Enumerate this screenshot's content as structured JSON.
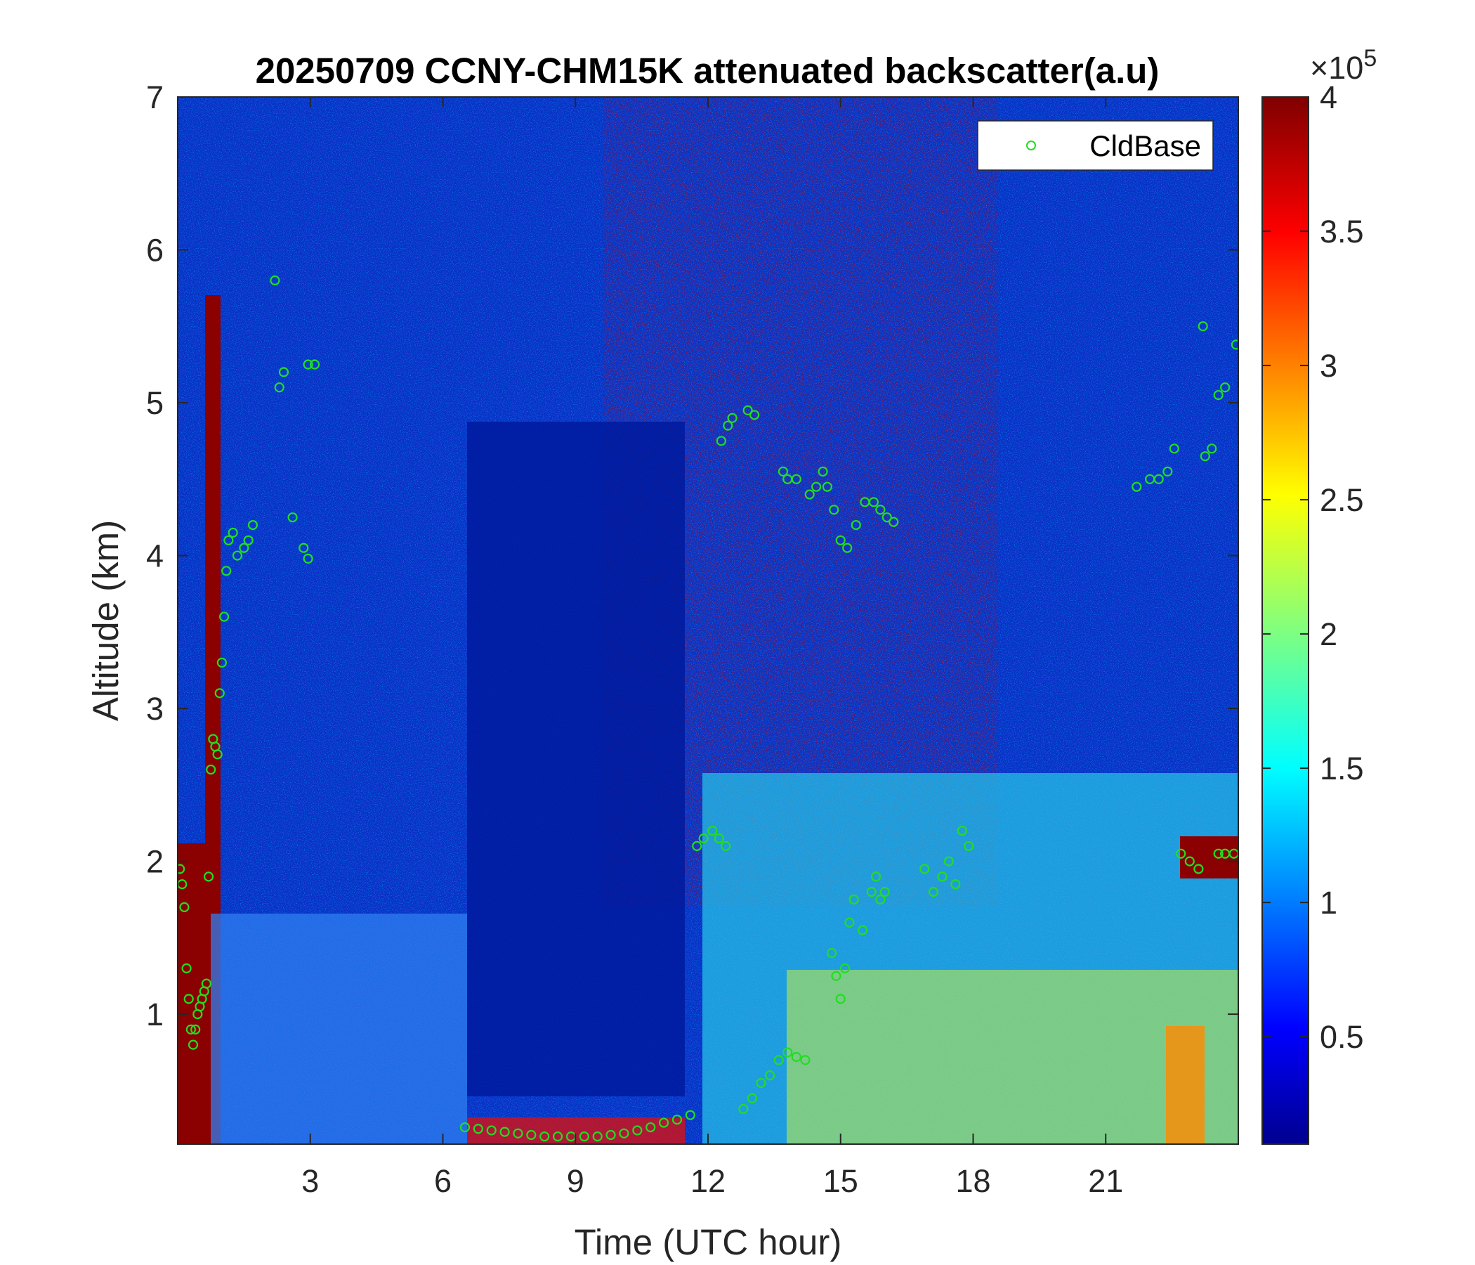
{
  "chart_data": {
    "type": "heatmap",
    "title": "20250709 CCNY-CHM15K attenuated backscatter(a.u)",
    "xlabel": "Time (UTC hour)",
    "ylabel": "Altitude (km)",
    "xlim": [
      0,
      24
    ],
    "ylim": [
      0.15,
      7
    ],
    "xticks": [
      3,
      6,
      9,
      12,
      15,
      18,
      21
    ],
    "yticks": [
      1,
      2,
      3,
      4,
      5,
      6,
      7
    ],
    "colorbar": {
      "colormap": "jet",
      "range": [
        0.1,
        4
      ],
      "ticks": [
        0.5,
        1,
        1.5,
        2,
        2.5,
        3,
        3.5,
        4
      ],
      "exponent_label": "×10",
      "exponent": "5"
    },
    "legend": {
      "placement": "top-right",
      "entries": [
        "CldBase"
      ]
    },
    "series": [
      {
        "name": "CldBase",
        "marker": "circle",
        "color": "#22dd22",
        "points": [
          [
            0.05,
            1.95
          ],
          [
            0.1,
            1.85
          ],
          [
            0.15,
            1.7
          ],
          [
            0.2,
            1.3
          ],
          [
            0.25,
            1.1
          ],
          [
            0.3,
            0.9
          ],
          [
            0.35,
            0.8
          ],
          [
            0.4,
            0.9
          ],
          [
            0.45,
            1.0
          ],
          [
            0.5,
            1.05
          ],
          [
            0.55,
            1.1
          ],
          [
            0.6,
            1.15
          ],
          [
            0.65,
            1.2
          ],
          [
            0.7,
            1.9
          ],
          [
            0.75,
            2.6
          ],
          [
            0.8,
            2.8
          ],
          [
            0.85,
            2.75
          ],
          [
            0.9,
            2.7
          ],
          [
            0.95,
            3.1
          ],
          [
            1.0,
            3.3
          ],
          [
            1.05,
            3.6
          ],
          [
            1.1,
            3.9
          ],
          [
            1.15,
            4.1
          ],
          [
            1.25,
            4.15
          ],
          [
            1.35,
            4.0
          ],
          [
            1.5,
            4.05
          ],
          [
            1.6,
            4.1
          ],
          [
            1.7,
            4.2
          ],
          [
            2.2,
            5.8
          ],
          [
            2.3,
            5.1
          ],
          [
            2.4,
            5.2
          ],
          [
            2.6,
            4.25
          ],
          [
            2.85,
            4.05
          ],
          [
            2.95,
            3.98
          ],
          [
            2.95,
            5.25
          ],
          [
            3.1,
            5.25
          ],
          [
            6.5,
            0.26
          ],
          [
            6.8,
            0.25
          ],
          [
            7.1,
            0.24
          ],
          [
            7.4,
            0.23
          ],
          [
            7.7,
            0.22
          ],
          [
            8.0,
            0.21
          ],
          [
            8.3,
            0.2
          ],
          [
            8.6,
            0.2
          ],
          [
            8.9,
            0.2
          ],
          [
            9.2,
            0.2
          ],
          [
            9.5,
            0.2
          ],
          [
            9.8,
            0.21
          ],
          [
            10.1,
            0.22
          ],
          [
            10.4,
            0.24
          ],
          [
            10.7,
            0.26
          ],
          [
            11.0,
            0.29
          ],
          [
            11.3,
            0.31
          ],
          [
            11.6,
            0.34
          ],
          [
            11.75,
            2.1
          ],
          [
            11.9,
            2.15
          ],
          [
            12.1,
            2.2
          ],
          [
            12.25,
            2.15
          ],
          [
            12.4,
            2.1
          ],
          [
            12.3,
            4.75
          ],
          [
            12.45,
            4.85
          ],
          [
            12.55,
            4.9
          ],
          [
            12.9,
            4.95
          ],
          [
            13.05,
            4.92
          ],
          [
            12.8,
            0.38
          ],
          [
            13.0,
            0.45
          ],
          [
            13.2,
            0.55
          ],
          [
            13.4,
            0.6
          ],
          [
            13.6,
            0.7
          ],
          [
            13.8,
            0.75
          ],
          [
            14.0,
            0.72
          ],
          [
            14.2,
            0.7
          ],
          [
            13.7,
            4.55
          ],
          [
            13.8,
            4.5
          ],
          [
            14.0,
            4.5
          ],
          [
            14.3,
            4.4
          ],
          [
            14.45,
            4.45
          ],
          [
            14.6,
            4.55
          ],
          [
            14.7,
            4.45
          ],
          [
            14.85,
            4.3
          ],
          [
            15.0,
            4.1
          ],
          [
            15.15,
            4.05
          ],
          [
            15.35,
            4.2
          ],
          [
            15.55,
            4.35
          ],
          [
            15.75,
            4.35
          ],
          [
            15.9,
            4.3
          ],
          [
            16.05,
            4.25
          ],
          [
            16.2,
            4.22
          ],
          [
            14.8,
            1.4
          ],
          [
            14.9,
            1.25
          ],
          [
            15.0,
            1.1
          ],
          [
            15.1,
            1.3
          ],
          [
            15.2,
            1.6
          ],
          [
            15.3,
            1.75
          ],
          [
            15.5,
            1.55
          ],
          [
            15.7,
            1.8
          ],
          [
            15.8,
            1.9
          ],
          [
            15.9,
            1.75
          ],
          [
            16.0,
            1.8
          ],
          [
            16.9,
            1.95
          ],
          [
            17.1,
            1.8
          ],
          [
            17.3,
            1.9
          ],
          [
            17.45,
            2.0
          ],
          [
            17.6,
            1.85
          ],
          [
            17.75,
            2.2
          ],
          [
            17.9,
            2.1
          ],
          [
            21.7,
            4.45
          ],
          [
            22.0,
            4.5
          ],
          [
            22.2,
            4.5
          ],
          [
            22.4,
            4.55
          ],
          [
            22.55,
            4.7
          ],
          [
            22.7,
            2.05
          ],
          [
            22.9,
            2.0
          ],
          [
            23.1,
            1.95
          ],
          [
            23.25,
            4.65
          ],
          [
            23.4,
            4.7
          ],
          [
            23.55,
            2.05
          ],
          [
            23.7,
            2.05
          ],
          [
            23.9,
            2.05
          ],
          [
            23.2,
            5.5
          ],
          [
            23.55,
            5.05
          ],
          [
            23.7,
            5.1
          ],
          [
            23.95,
            5.38
          ]
        ]
      }
    ]
  }
}
